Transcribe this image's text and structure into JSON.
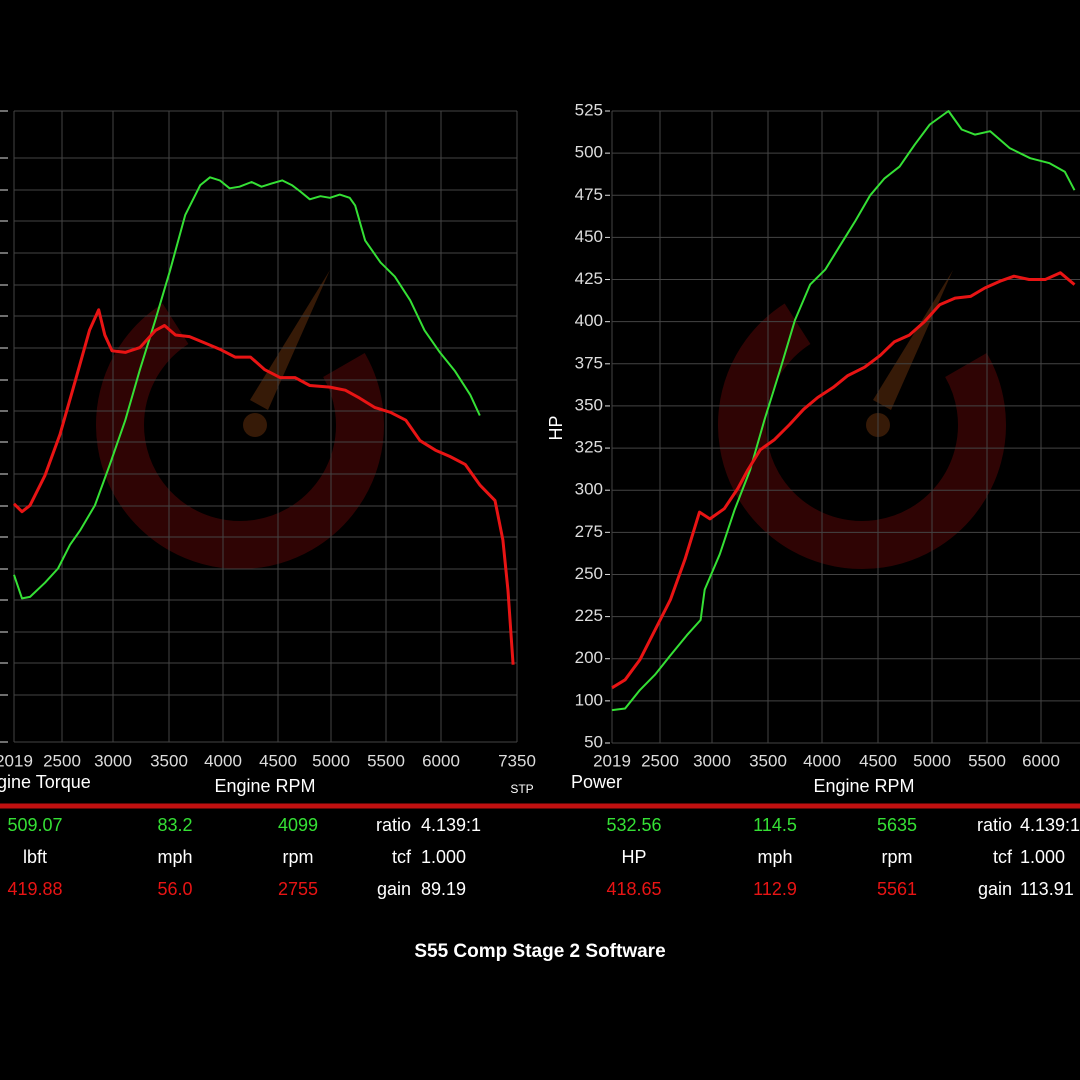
{
  "chart_data": [
    {
      "type": "line",
      "title": "Engine Torque",
      "x_label": "Engine RPM",
      "note": "STP",
      "xlim": [
        2019,
        7350
      ],
      "ylim": [
        150,
        550
      ],
      "xticks": [
        2019,
        2500,
        3000,
        3500,
        4000,
        4500,
        5000,
        5500,
        6000,
        7350
      ],
      "series": [
        {
          "color": "#35e035",
          "x": [
            2019,
            2099,
            2179,
            2330,
            2460,
            2578,
            2676,
            2823,
            2970,
            3110,
            3240,
            3380,
            3510,
            3650,
            3790,
            3880,
            3970,
            4060,
            4150,
            4260,
            4350,
            4440,
            4540,
            4630,
            4710,
            4800,
            4900,
            4990,
            5080,
            5170,
            5220,
            5310,
            5450,
            5580,
            5720,
            5850,
            5990,
            6250,
            6520,
            6690
          ],
          "values": [
            256,
            241,
            242,
            251,
            260,
            275,
            284,
            300,
            326,
            354,
            386,
            418,
            449,
            484,
            503,
            508,
            506,
            501,
            502,
            505,
            502,
            504,
            506,
            503,
            499,
            494,
            496,
            495,
            497,
            495,
            490,
            468,
            454,
            445,
            430,
            411,
            397,
            385,
            370,
            357
          ]
        },
        {
          "color": "#e81414",
          "x": [
            2019,
            2099,
            2179,
            2330,
            2480,
            2630,
            2770,
            2860,
            2920,
            2990,
            3110,
            3240,
            3380,
            3460,
            3560,
            3690,
            3830,
            3970,
            4110,
            4250,
            4380,
            4520,
            4660,
            4800,
            4990,
            5130,
            5260,
            5400,
            5540,
            5680,
            5810,
            5950,
            6160,
            6430,
            6690,
            6960,
            7100,
            7190,
            7280
          ],
          "values": [
            301,
            296,
            300,
            319,
            345,
            379,
            411,
            424,
            408,
            398,
            397,
            400,
            411,
            414,
            408,
            407,
            403,
            399,
            394,
            394,
            386,
            381,
            381,
            376,
            375,
            373,
            368,
            362,
            359,
            354,
            341,
            335,
            331,
            326,
            313,
            303,
            278,
            246,
            199
          ]
        }
      ]
    },
    {
      "type": "line",
      "title": "Power",
      "x_label": "Engine RPM",
      "y_label": "HP",
      "xlim": [
        2019,
        6361
      ],
      "ylim": [
        50,
        525
      ],
      "xticks": [
        2019,
        2500,
        3000,
        3500,
        4000,
        4500,
        5000,
        5500,
        6000
      ],
      "yticks": [
        525,
        500,
        475,
        450,
        425,
        400,
        375,
        350,
        325,
        300,
        275,
        250,
        225,
        200,
        100,
        50
      ],
      "series": [
        {
          "color": "#35e035",
          "x": [
            2019,
            2150,
            2300,
            2450,
            2600,
            2760,
            2890,
            2930,
            3070,
            3200,
            3340,
            3470,
            3610,
            3750,
            3890,
            4030,
            4160,
            4300,
            4430,
            4560,
            4700,
            4840,
            4980,
            5150,
            5270,
            5390,
            5530,
            5710,
            5900,
            6080,
            6220,
            6310
          ],
          "values": [
            89,
            91,
            126,
            162,
            202,
            214,
            223,
            241,
            262,
            288,
            312,
            342,
            371,
            401,
            422,
            431,
            445,
            460,
            475,
            485,
            492,
            505,
            517,
            525,
            514,
            511,
            513,
            503,
            497,
            494,
            489,
            478
          ]
        },
        {
          "color": "#e81414",
          "x": [
            2019,
            2150,
            2300,
            2450,
            2600,
            2740,
            2880,
            2980,
            3110,
            3230,
            3320,
            3430,
            3560,
            3700,
            3830,
            3960,
            4100,
            4230,
            4380,
            4520,
            4650,
            4790,
            4930,
            5070,
            5210,
            5350,
            5480,
            5620,
            5750,
            5890,
            6040,
            6180,
            6310
          ],
          "values": [
            131,
            150,
            198,
            217,
            235,
            259,
            287,
            283,
            289,
            301,
            312,
            324,
            330,
            339,
            348,
            355,
            361,
            368,
            373,
            380,
            388,
            392,
            400,
            410,
            414,
            415,
            420,
            424,
            427,
            425,
            425,
            429,
            422
          ]
        }
      ]
    }
  ],
  "readouts": [
    {
      "rows": [
        [
          "509.07",
          "83.2",
          "4099",
          "ratio",
          "4.139:1"
        ],
        [
          "lbft",
          "mph",
          "rpm",
          "tcf",
          "1.000"
        ],
        [
          "419.88",
          "56.0",
          "2755",
          "gain",
          "89.19"
        ]
      ]
    },
    {
      "rows": [
        [
          "532.56",
          "114.5",
          "5635",
          "ratio",
          "4.139:1"
        ],
        [
          "HP",
          "mph",
          "rpm",
          "tcf",
          "1.000"
        ],
        [
          "418.65",
          "112.9",
          "5561",
          "gain",
          "113.91"
        ]
      ]
    }
  ],
  "footer": "S55 Comp Stage 2 Software"
}
